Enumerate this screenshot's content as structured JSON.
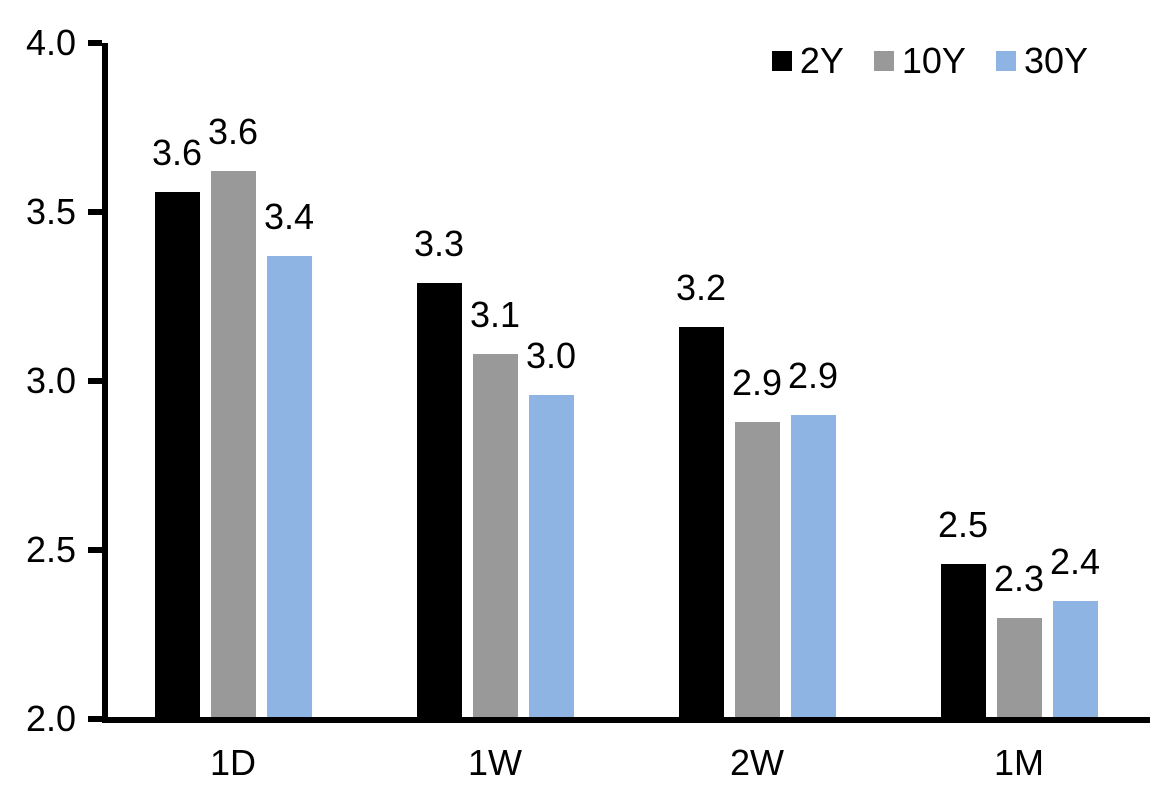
{
  "chart_data": {
    "type": "bar",
    "title": "",
    "xlabel": "",
    "ylabel": "",
    "categories": [
      "1D",
      "1W",
      "2W",
      "1M"
    ],
    "series": [
      {
        "name": "2Y",
        "color": "#000000",
        "values": [
          3.6,
          3.3,
          3.2,
          2.5
        ],
        "labels": [
          "3.6",
          "3.3",
          "3.2",
          "2.5"
        ],
        "values_precise": [
          3.56,
          3.29,
          3.16,
          2.46
        ]
      },
      {
        "name": "10Y",
        "color": "#999999",
        "values": [
          3.6,
          3.1,
          2.9,
          2.3
        ],
        "labels": [
          "3.6",
          "3.1",
          "2.9",
          "2.3"
        ],
        "values_precise": [
          3.62,
          3.08,
          2.88,
          2.3
        ]
      },
      {
        "name": "30Y",
        "color": "#8DB4E2",
        "values": [
          3.4,
          3.0,
          2.9,
          2.4
        ],
        "labels": [
          "3.4",
          "3.0",
          "2.9",
          "2.4"
        ],
        "values_precise": [
          3.37,
          2.96,
          2.9,
          2.35
        ]
      }
    ],
    "ylim": [
      2.0,
      4.0
    ],
    "yticks": [
      "2.0",
      "2.5",
      "3.0",
      "3.5",
      "4.0"
    ],
    "grid": false,
    "legend_position": "top-right",
    "colors": {
      "axis": "#000000",
      "background": "#FFFFFF",
      "text": "#000000"
    }
  }
}
